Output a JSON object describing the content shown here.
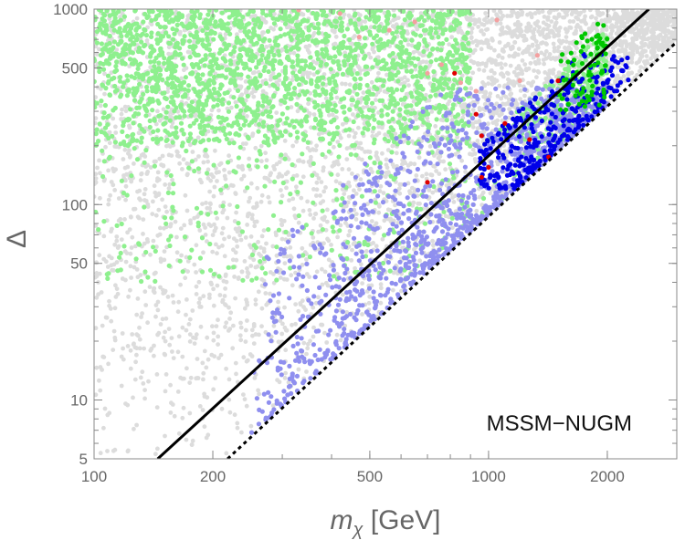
{
  "chart_data": {
    "type": "scatter",
    "title": "",
    "xscale": "log",
    "yscale": "log",
    "xlim": [
      100,
      3000
    ],
    "ylim": [
      5,
      1000
    ],
    "xlabel_main": "m",
    "xlabel_sub": "χ",
    "xlabel_unit": " [GeV]",
    "ylabel": "Δ",
    "xticks": [
      {
        "value": 100,
        "label": "100"
      },
      {
        "value": 200,
        "label": "200"
      },
      {
        "value": 500,
        "label": "500"
      },
      {
        "value": 1000,
        "label": "1000"
      },
      {
        "value": 2000,
        "label": "2000"
      }
    ],
    "yticks": [
      {
        "value": 5,
        "label": "5"
      },
      {
        "value": 10,
        "label": "10"
      },
      {
        "value": 50,
        "label": "50"
      },
      {
        "value": 100,
        "label": "100"
      },
      {
        "value": 500,
        "label": "500"
      },
      {
        "value": 1000,
        "label": "1000"
      }
    ],
    "annotation": "MSSM−NUGM",
    "lines": [
      {
        "name": "solid",
        "style": "solid",
        "color": "#000000",
        "points": [
          [
            145,
            5
          ],
          [
            2550,
            1000
          ]
        ]
      },
      {
        "name": "dashed",
        "style": "dotted",
        "color": "#000000",
        "points": [
          [
            218,
            5
          ],
          [
            3000,
            680
          ]
        ]
      }
    ],
    "series": [
      {
        "name": "all-points",
        "color": "#dcdcdc",
        "approx_count": 4000,
        "region": {
          "x_range": [
            100,
            3000
          ],
          "lower_edge": "dotted line",
          "note": "fills area left of dotted line"
        }
      },
      {
        "name": "light-green",
        "color": "#8ef08e",
        "approx_count": 2500,
        "region": {
          "x_range": [
            100,
            2000
          ],
          "y_range": [
            40,
            1000
          ],
          "note": "concentrated above y=200"
        }
      },
      {
        "name": "light-blue",
        "color": "#8f8fef",
        "approx_count": 1100,
        "region": {
          "x_range": [
            250,
            2000
          ],
          "note": "band just left of dotted line"
        }
      },
      {
        "name": "blue",
        "color": "#0000e8",
        "approx_count": 320,
        "region": {
          "x_range": [
            950,
            2300
          ],
          "y_range": [
            120,
            600
          ]
        }
      },
      {
        "name": "green",
        "color": "#00c800",
        "approx_count": 80,
        "region": {
          "x_range": [
            1500,
            2000
          ],
          "y_range": [
            300,
            900
          ]
        }
      },
      {
        "name": "red",
        "color": "#e00000",
        "approx_count": 10,
        "region": {
          "x_range": [
            700,
            1500
          ],
          "y_range": [
            120,
            700
          ]
        }
      },
      {
        "name": "pink",
        "color": "#f4a0a0",
        "approx_count": 12,
        "region": {
          "x_range": [
            300,
            1500
          ],
          "y_range": [
            300,
            1000
          ]
        }
      }
    ]
  }
}
